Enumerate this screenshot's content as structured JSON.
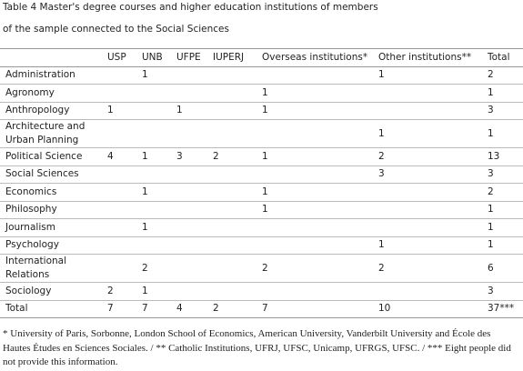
{
  "title": {
    "lines": [
      "Table 4 Master's degree courses and higher education institutions of members",
      "of the sample connected to the Social Sciences"
    ]
  },
  "table": {
    "columns": [
      null,
      "USP",
      "UNB",
      "UFPE",
      "IUPERJ",
      "Overseas institutions*",
      "Other institutions**",
      "Total"
    ],
    "rows": [
      [
        "Administration",
        null,
        1,
        null,
        null,
        null,
        1,
        2
      ],
      [
        "Agronomy",
        null,
        null,
        null,
        null,
        1,
        null,
        1
      ],
      [
        "Anthropology",
        1,
        null,
        1,
        null,
        1,
        null,
        3
      ],
      [
        "Architecture and Urban Planning",
        null,
        null,
        null,
        null,
        null,
        1,
        1
      ],
      [
        "Political Science",
        4,
        1,
        3,
        2,
        1,
        2,
        13
      ],
      [
        "Social Sciences",
        null,
        null,
        null,
        null,
        null,
        3,
        3
      ],
      [
        "Economics",
        null,
        1,
        null,
        null,
        1,
        null,
        2
      ],
      [
        "Philosophy",
        null,
        null,
        null,
        null,
        1,
        null,
        1
      ],
      [
        "Journalism",
        null,
        1,
        null,
        null,
        null,
        null,
        1
      ],
      [
        "Psychology",
        null,
        null,
        null,
        null,
        null,
        1,
        1
      ],
      [
        "International Relations",
        null,
        2,
        null,
        null,
        2,
        2,
        6
      ],
      [
        "Sociology",
        2,
        1,
        null,
        null,
        null,
        null,
        3
      ],
      [
        "Total",
        7,
        7,
        4,
        2,
        7,
        10,
        "37***"
      ]
    ]
  },
  "footnote": "* University of Paris, Sorbonne, London School of Economics, American University, Vanderbilt University and École des Hautes Études en Sciences Sociales. / ** Catholic Institutions, UFRJ, UFSC, Unicamp, UFRGS, UFSC. / *** Eight people did not provide this information."
}
